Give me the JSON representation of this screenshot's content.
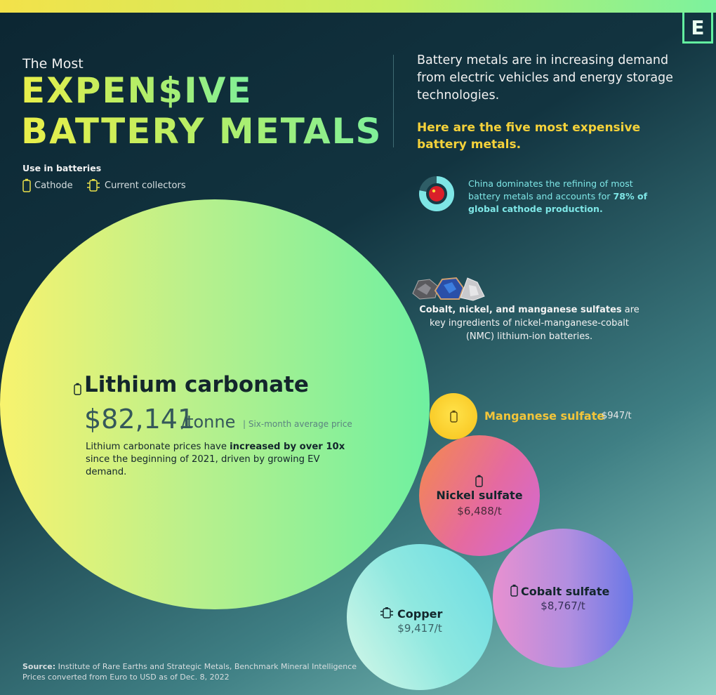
{
  "logo": "E",
  "title": {
    "small": "The Most",
    "line1": "EXPEN$IVE",
    "line2": "BATTERY METALS"
  },
  "intro": "Battery metals are in increasing demand from electric vehicles and energy storage technologies.",
  "intro_bold": "Here are the five most expensive battery metals.",
  "legend": {
    "title": "Use in batteries",
    "items": [
      {
        "label": "Cathode",
        "icon": "battery-icon"
      },
      {
        "label": "Current collectors",
        "icon": "current-collector-icon"
      }
    ]
  },
  "china_note": {
    "text": "China dominates the refining of most battery metals and accounts for",
    "bold": "78% of global cathode production.",
    "share": 78
  },
  "ore_note": {
    "bold": "Cobalt, nickel, and manganese sulfates",
    "text": " are key ingredients of nickel-manganese-cobalt (NMC) lithium-ion batteries."
  },
  "lithium": {
    "name": "Lithium carbonate",
    "price": "$82,141",
    "unit": "/tonne",
    "sub": "| Six-month average price",
    "desc_pre": "Lithium carbonate prices have ",
    "desc_bold": "increased by over 10x",
    "desc_post": " since the beginning of 2021, driven by growing EV demand."
  },
  "manganese": {
    "name": "Manganese sulfate",
    "price": "$947/t"
  },
  "nickel": {
    "name": "Nickel sulfate",
    "price": "$6,488/t"
  },
  "copper": {
    "name": "Copper",
    "price": "$9,417/t"
  },
  "cobalt": {
    "name": "Cobalt sulfate",
    "price": "$8,767/t"
  },
  "source": {
    "label": "Source:",
    "text": " Institute of Rare Earths and Strategic Metals, Benchmark Mineral Intelligence",
    "line2": "Prices converted from Euro to USD as of Dec. 8, 2022"
  },
  "colors": {
    "lithium": "#b9f08c",
    "manganese": "#f7c21a",
    "nickel": "#e56aa0",
    "copper": "#8fe8e0",
    "cobalt": "#9a86e2",
    "accent_yellow": "#f5d23a",
    "accent_teal": "#7ee6e6"
  },
  "chart_data": {
    "type": "bubble",
    "categories": [
      "Lithium carbonate",
      "Copper",
      "Cobalt sulfate",
      "Nickel sulfate",
      "Manganese sulfate"
    ],
    "values": [
      82141,
      9417,
      8767,
      6488,
      947
    ],
    "unit": "USD per tonne",
    "use": [
      "Cathode",
      "Current collectors",
      "Cathode",
      "Cathode",
      "Cathode"
    ]
  }
}
